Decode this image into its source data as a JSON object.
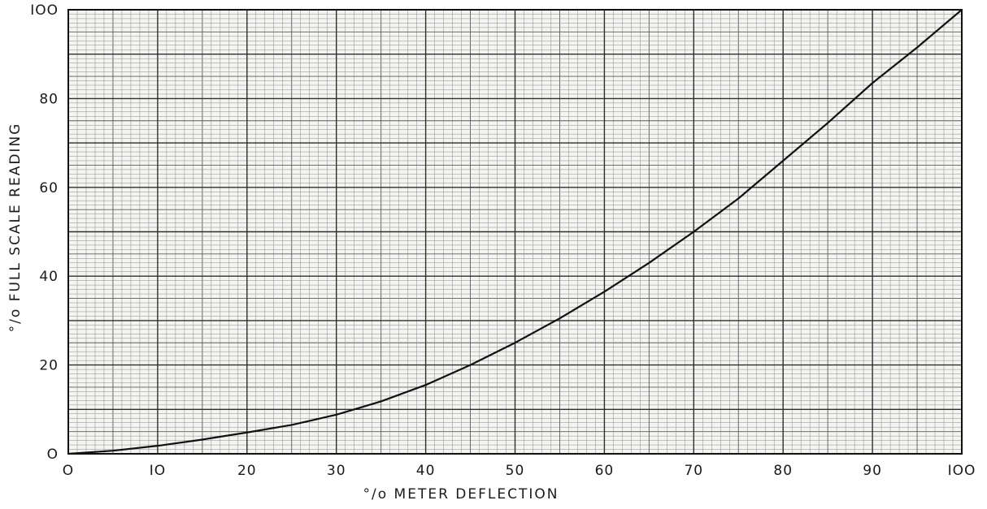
{
  "chart_data": {
    "type": "line",
    "title": "",
    "xlabel": "°/o METER DEFLECTION",
    "ylabel": "°/o FULL SCALE READING",
    "xlim": [
      0,
      100
    ],
    "ylim": [
      0,
      100
    ],
    "x_ticks": [
      0,
      10,
      20,
      30,
      40,
      50,
      60,
      70,
      80,
      90,
      100
    ],
    "y_ticks": [
      0,
      20,
      40,
      60,
      80,
      100
    ],
    "x_tick_labels": [
      "O",
      "IO",
      "20",
      "30",
      "40",
      "50",
      "60",
      "70",
      "80",
      "90",
      "IOO"
    ],
    "y_tick_labels": [
      "O",
      "20",
      "40",
      "60",
      "80",
      "IOO"
    ],
    "grid": true,
    "colors": {
      "grid_fine": "#8a8a8a",
      "grid_major": "#2e2e2e",
      "curve": "#111111",
      "frame": "#111111"
    },
    "series": [
      {
        "x": [
          0,
          5,
          10,
          15,
          20,
          25,
          30,
          35,
          40,
          45,
          50,
          55,
          60,
          65,
          70,
          75,
          80,
          85,
          90,
          95,
          100
        ],
        "y": [
          0,
          0.7,
          1.8,
          3.2,
          4.8,
          6.5,
          8.8,
          11.8,
          15.5,
          20.0,
          25.0,
          30.5,
          36.5,
          43.0,
          50.0,
          57.5,
          66.0,
          74.5,
          83.5,
          91.5,
          100
        ]
      }
    ]
  }
}
